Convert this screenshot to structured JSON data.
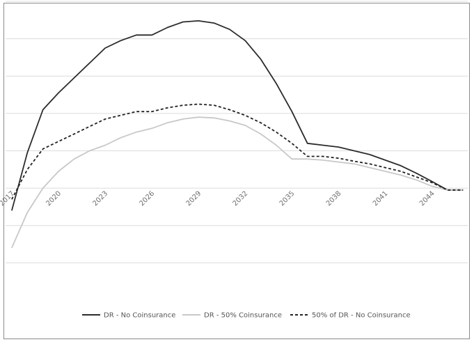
{
  "chart_data": {
    "type": "line",
    "x_ticks": [
      "2017",
      "2020",
      "2023",
      "2026",
      "2029",
      "2032",
      "2035",
      "2038",
      "2041",
      "2044"
    ],
    "x": [
      2017,
      2018,
      2019,
      2020,
      2021,
      2022,
      2023,
      2024,
      2025,
      2026,
      2027,
      2028,
      2029,
      2030,
      2031,
      2032,
      2033,
      2034,
      2035,
      2036,
      2037,
      2038,
      2039,
      2040,
      2041,
      2042,
      2043,
      2044,
      2045,
      2046
    ],
    "xlim": [
      2016.6,
      2046.3
    ],
    "ylim": [
      -3,
      5
    ],
    "grid": true,
    "legend_position": "bottom",
    "series": [
      {
        "name": "DR - No Coinsurance",
        "color": "#2b2b2b",
        "dash": "solid",
        "values": [
          -0.6,
          0.95,
          2.1,
          2.55,
          2.95,
          3.35,
          3.75,
          3.95,
          4.1,
          4.1,
          4.3,
          4.45,
          4.48,
          4.42,
          4.25,
          3.95,
          3.45,
          2.8,
          2.05,
          1.2,
          1.15,
          1.1,
          1.0,
          0.9,
          0.75,
          0.6,
          0.4,
          0.18,
          -0.05,
          -0.05
        ]
      },
      {
        "name": "DR - 50% Coinsurance",
        "color": "#c8c8c8",
        "dash": "solid",
        "values": [
          -1.6,
          -0.65,
          0.0,
          0.45,
          0.78,
          1.0,
          1.15,
          1.35,
          1.5,
          1.6,
          1.75,
          1.85,
          1.9,
          1.88,
          1.8,
          1.68,
          1.45,
          1.15,
          0.78,
          0.78,
          0.75,
          0.7,
          0.65,
          0.55,
          0.45,
          0.35,
          0.22,
          0.05,
          -0.05,
          -0.05
        ]
      },
      {
        "name": "50% of DR - No Coinsurance",
        "color": "#222222",
        "dash": "dashed",
        "values": [
          -0.3,
          0.5,
          1.05,
          1.25,
          1.45,
          1.65,
          1.85,
          1.95,
          2.05,
          2.05,
          2.15,
          2.22,
          2.25,
          2.22,
          2.1,
          1.95,
          1.75,
          1.5,
          1.2,
          0.85,
          0.85,
          0.8,
          0.72,
          0.65,
          0.55,
          0.45,
          0.3,
          0.15,
          -0.05,
          -0.05
        ]
      }
    ]
  }
}
